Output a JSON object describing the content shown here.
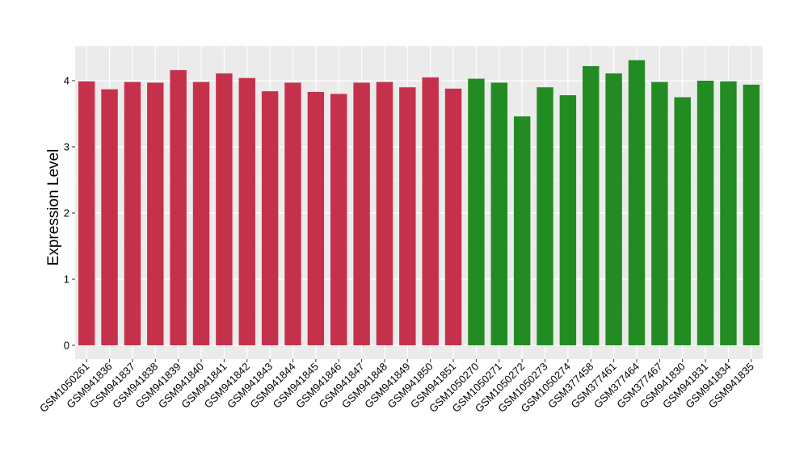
{
  "chart_data": {
    "type": "bar",
    "title": "",
    "xlabel": "",
    "ylabel": "Expression Level",
    "ylim": [
      0,
      4.55
    ],
    "yticks": [
      0,
      1,
      2,
      3,
      4
    ],
    "grid": true,
    "legend": "none",
    "colors": {
      "panel_background": "#ebebeb",
      "grid_major": "#ffffff",
      "grid_minor": "#f4f4f4",
      "group_a": "#c5314a",
      "group_b": "#228b22"
    },
    "categories": [
      "GSM1050261",
      "GSM941836",
      "GSM941837",
      "GSM941838",
      "GSM941839",
      "GSM941840",
      "GSM941841",
      "GSM941842",
      "GSM941843",
      "GSM941844",
      "GSM941845",
      "GSM941846",
      "GSM941847",
      "GSM941848",
      "GSM941849",
      "GSM941850",
      "GSM941851",
      "GSM1050270",
      "GSM1050271",
      "GSM1050272",
      "GSM1050273",
      "GSM1050274",
      "GSM377458",
      "GSM377461",
      "GSM377464",
      "GSM377467",
      "GSM941830",
      "GSM941831",
      "GSM941834",
      "GSM941835"
    ],
    "values": [
      3.99,
      3.87,
      3.98,
      3.97,
      4.16,
      3.98,
      4.11,
      4.04,
      3.84,
      3.97,
      3.83,
      3.8,
      3.97,
      3.98,
      3.9,
      4.05,
      3.88,
      4.03,
      3.97,
      3.46,
      3.9,
      3.78,
      4.22,
      4.11,
      4.31,
      3.98,
      3.75,
      4.0,
      3.99,
      3.94
    ],
    "groups": [
      "group_a",
      "group_a",
      "group_a",
      "group_a",
      "group_a",
      "group_a",
      "group_a",
      "group_a",
      "group_a",
      "group_a",
      "group_a",
      "group_a",
      "group_a",
      "group_a",
      "group_a",
      "group_a",
      "group_a",
      "group_b",
      "group_b",
      "group_b",
      "group_b",
      "group_b",
      "group_b",
      "group_b",
      "group_b",
      "group_b",
      "group_b",
      "group_b",
      "group_b",
      "group_b"
    ]
  }
}
